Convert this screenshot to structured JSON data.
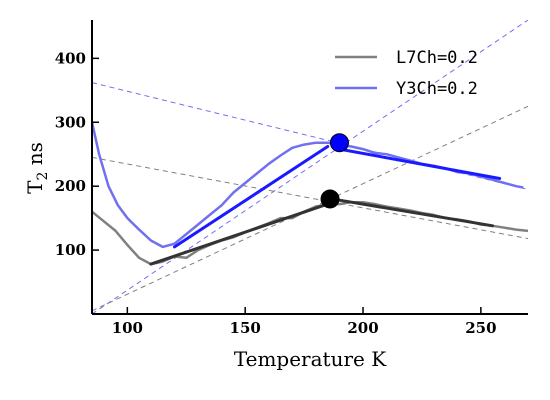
{
  "chart_data": {
    "type": "line",
    "xlabel": "Temperature K",
    "ylabel": {
      "base": "T",
      "sub": "2",
      "unit": " ns"
    },
    "xlim": [
      85,
      270
    ],
    "ylim": [
      0,
      460
    ],
    "x_ticks": [
      100,
      150,
      200,
      250
    ],
    "y_ticks": [
      100,
      200,
      300,
      400
    ],
    "grid": false,
    "legend_position": "top-right",
    "series": [
      {
        "name": "L7Ch=0.2",
        "legend_label": "L7Ch=0.2",
        "color": "#808080",
        "fit_color": "#333333",
        "x": [
          85,
          90,
          95,
          100,
          105,
          110,
          115,
          120,
          125,
          130,
          135,
          140,
          145,
          150,
          155,
          160,
          165,
          170,
          175,
          180,
          185,
          190,
          195,
          200,
          205,
          210,
          215,
          220,
          225,
          230,
          235,
          240,
          245,
          250,
          255,
          260,
          265,
          270
        ],
        "y": [
          160,
          145,
          130,
          108,
          88,
          78,
          82,
          90,
          88,
          100,
          108,
          115,
          120,
          128,
          135,
          142,
          150,
          150,
          160,
          168,
          172,
          172,
          175,
          175,
          172,
          168,
          165,
          162,
          158,
          155,
          150,
          148,
          145,
          140,
          138,
          135,
          132,
          130
        ],
        "fit_low": {
          "x": [
            110,
            185
          ],
          "y": [
            78,
            172
          ]
        },
        "fit_high": {
          "x": [
            190,
            255
          ],
          "y": [
            178,
            138
          ]
        },
        "guide_low": {
          "x": [
            85,
            270
          ],
          "y": [
            5,
            325
          ]
        },
        "guide_high": {
          "x": [
            85,
            270
          ],
          "y": [
            245,
            118
          ]
        },
        "marker": {
          "x": 186,
          "y": 180,
          "color": "#000000"
        }
      },
      {
        "name": "Y3Ch=0.2",
        "legend_label": "Y3Ch=0.2",
        "color": "#7070f0",
        "fit_color": "#1a1aff",
        "x": [
          85,
          88,
          92,
          96,
          100,
          105,
          110,
          115,
          120,
          125,
          130,
          135,
          140,
          145,
          150,
          155,
          160,
          165,
          170,
          175,
          180,
          185,
          190,
          195,
          200,
          205,
          210,
          215,
          220,
          225,
          230,
          235,
          240,
          245,
          250,
          255,
          260,
          265,
          268
        ],
        "y": [
          300,
          250,
          200,
          170,
          150,
          132,
          115,
          105,
          110,
          125,
          140,
          155,
          170,
          190,
          205,
          220,
          235,
          248,
          260,
          265,
          268,
          268,
          265,
          262,
          258,
          252,
          250,
          245,
          240,
          235,
          232,
          228,
          222,
          220,
          215,
          210,
          205,
          200,
          198
        ],
        "fit_low": {
          "x": [
            120,
            185
          ],
          "y": [
            105,
            262
          ]
        },
        "fit_high": {
          "x": [
            190,
            258
          ],
          "y": [
            258,
            212
          ]
        },
        "guide_low": {
          "x": [
            85,
            270
          ],
          "y": [
            0,
            460
          ]
        },
        "guide_high": {
          "x": [
            85,
            270
          ],
          "y": [
            362,
            195
          ]
        },
        "marker": {
          "x": 190,
          "y": 268,
          "color": "#0000ff"
        }
      }
    ]
  }
}
